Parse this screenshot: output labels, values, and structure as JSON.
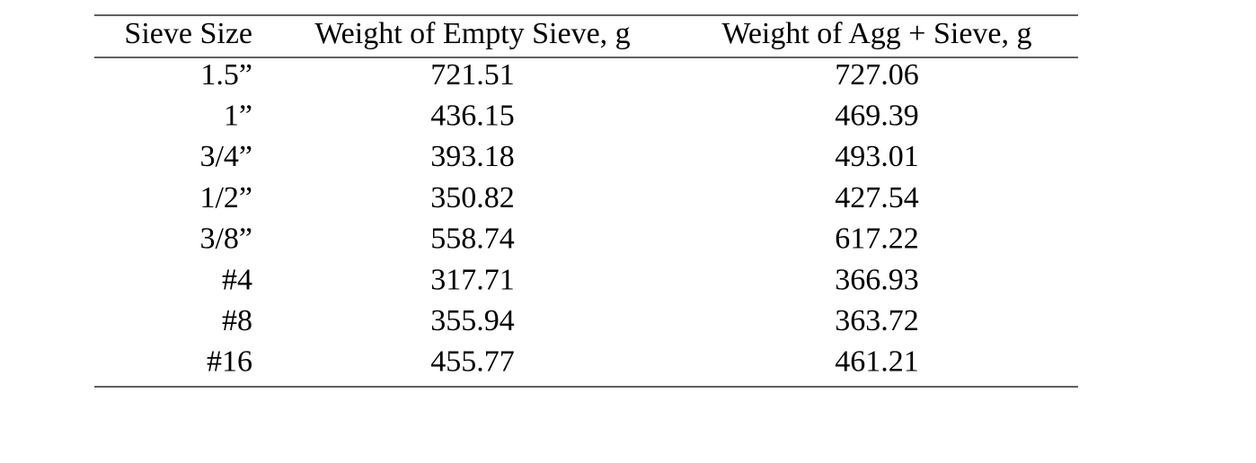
{
  "table": {
    "header": [
      "Sieve Size",
      "Weight of Empty Sieve, g",
      "Weight of Agg + Sieve, g"
    ],
    "rows": [
      [
        "1.5”",
        "721.51",
        "727.06"
      ],
      [
        "1”",
        "436.15",
        "469.39"
      ],
      [
        "3/4”",
        "393.18",
        "493.01"
      ],
      [
        "1/2”",
        "350.82",
        "427.54"
      ],
      [
        "3/8”",
        "558.74",
        "617.22"
      ],
      [
        "#4",
        "317.71",
        "366.93"
      ],
      [
        "#8",
        "355.94",
        "363.72"
      ],
      [
        "#16",
        "455.77",
        "461.21"
      ]
    ]
  }
}
